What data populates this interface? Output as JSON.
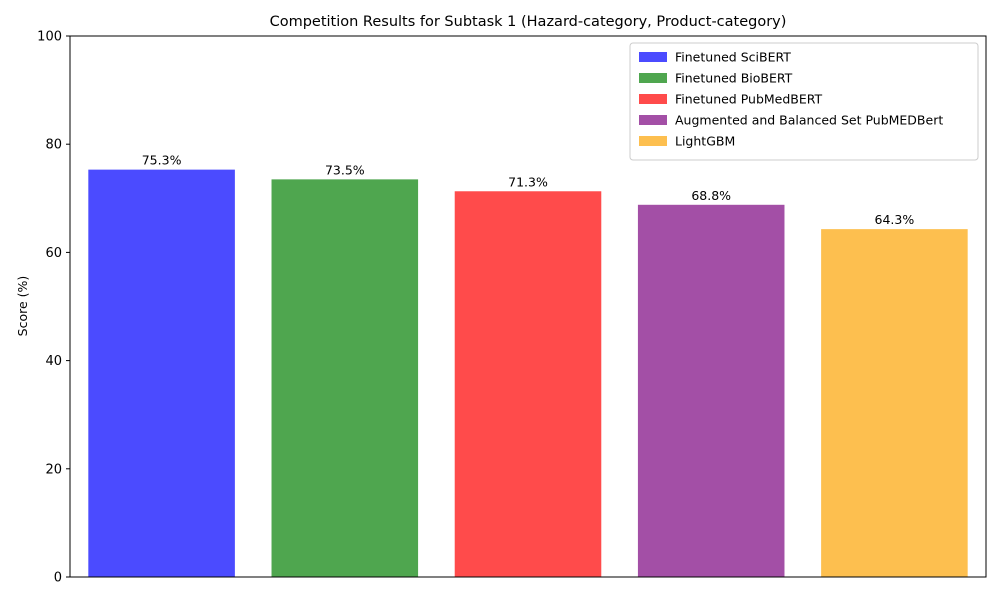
{
  "chart_data": {
    "type": "bar",
    "title": "Competition Results for Subtask 1 (Hazard-category, Product-category)",
    "xlabel": "",
    "ylabel": "Score (%)",
    "ylim": [
      0,
      100
    ],
    "yticks": [
      0,
      20,
      40,
      60,
      80,
      100
    ],
    "grid": false,
    "legend_position": "top-right",
    "categories": [
      "Finetuned SciBERT",
      "Finetuned BioBERT",
      "Finetuned PubMedBERT",
      "Augmented and Balanced Set PubMEDBert",
      "LightGBM"
    ],
    "values": [
      75.3,
      73.5,
      71.3,
      68.8,
      64.3
    ],
    "data_labels": [
      "75.3%",
      "73.5%",
      "71.3%",
      "68.8%",
      "64.3%"
    ],
    "colors": [
      "#4b4bff",
      "#4fa64f",
      "#ff4b4b",
      "#a34fa6",
      "#fdbf4f"
    ]
  }
}
